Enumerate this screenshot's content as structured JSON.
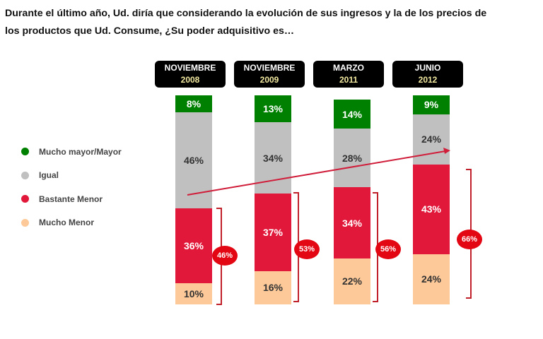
{
  "title_lines": [
    "Durante el último año, Ud. diría que considerando la evolución de sus ingresos y la de los precios de",
    "los productos que Ud. Consume, ¿Su poder adquisitivo  es…"
  ],
  "chart_data": {
    "type": "stacked-bar",
    "categories": [
      {
        "month": "NOVIEMBRE",
        "year": "2008"
      },
      {
        "month": "NOVIEMBRE",
        "year": "2009"
      },
      {
        "month": "MARZO",
        "year": "2011"
      },
      {
        "month": "JUNIO",
        "year": "2012"
      }
    ],
    "series": [
      {
        "name": "Mucho mayor/Mayor",
        "color": "#008000",
        "label_color": "#ffffff",
        "values": [
          8,
          13,
          14,
          9
        ]
      },
      {
        "name": "Igual",
        "color": "#c0c0c0",
        "label_color": "#333333",
        "values": [
          46,
          34,
          28,
          24
        ]
      },
      {
        "name": "Bastante Menor",
        "color": "#e2183a",
        "label_color": "#ffffff",
        "values": [
          36,
          37,
          34,
          43
        ]
      },
      {
        "name": "Mucho Menor",
        "color": "#fdc998",
        "label_color": "#333333",
        "values": [
          10,
          16,
          22,
          24
        ]
      }
    ],
    "bracket_totals": [
      "46%",
      "53%",
      "56%",
      "66%"
    ],
    "value_suffix": "%",
    "legend_position": "left",
    "annotation": "trend arrow rising from first to last bar",
    "accent_color": "#e30613"
  }
}
